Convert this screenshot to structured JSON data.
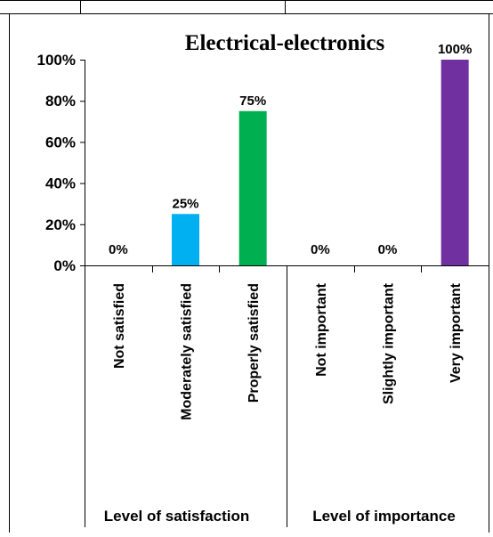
{
  "chart_data": {
    "type": "bar",
    "title": "Electrical-electronics",
    "ylim": [
      0,
      100
    ],
    "yticks": [
      "0%",
      "20%",
      "40%",
      "60%",
      "80%",
      "100%"
    ],
    "grid": false,
    "legend": "none",
    "categories": [
      "Not satisfied",
      "Moderately satisfied",
      "Properly satisfied",
      "Not important",
      "Slightly important",
      "Very important"
    ],
    "values": [
      0,
      25,
      75,
      0,
      0,
      100
    ],
    "data_labels": [
      "0%",
      "25%",
      "75%",
      "0%",
      "0%",
      "100%"
    ],
    "bar_colors": [
      "#00b0f0",
      "#00b0f0",
      "#00b050",
      "#7030a0",
      "#7030a0",
      "#7030a0"
    ],
    "groups": [
      {
        "label": "Level of satisfaction",
        "categories": [
          "Not satisfied",
          "Moderately satisfied",
          "Properly satisfied"
        ]
      },
      {
        "label": "Level of importance",
        "categories": [
          "Not important",
          "Slightly important",
          "Very important"
        ]
      }
    ]
  }
}
